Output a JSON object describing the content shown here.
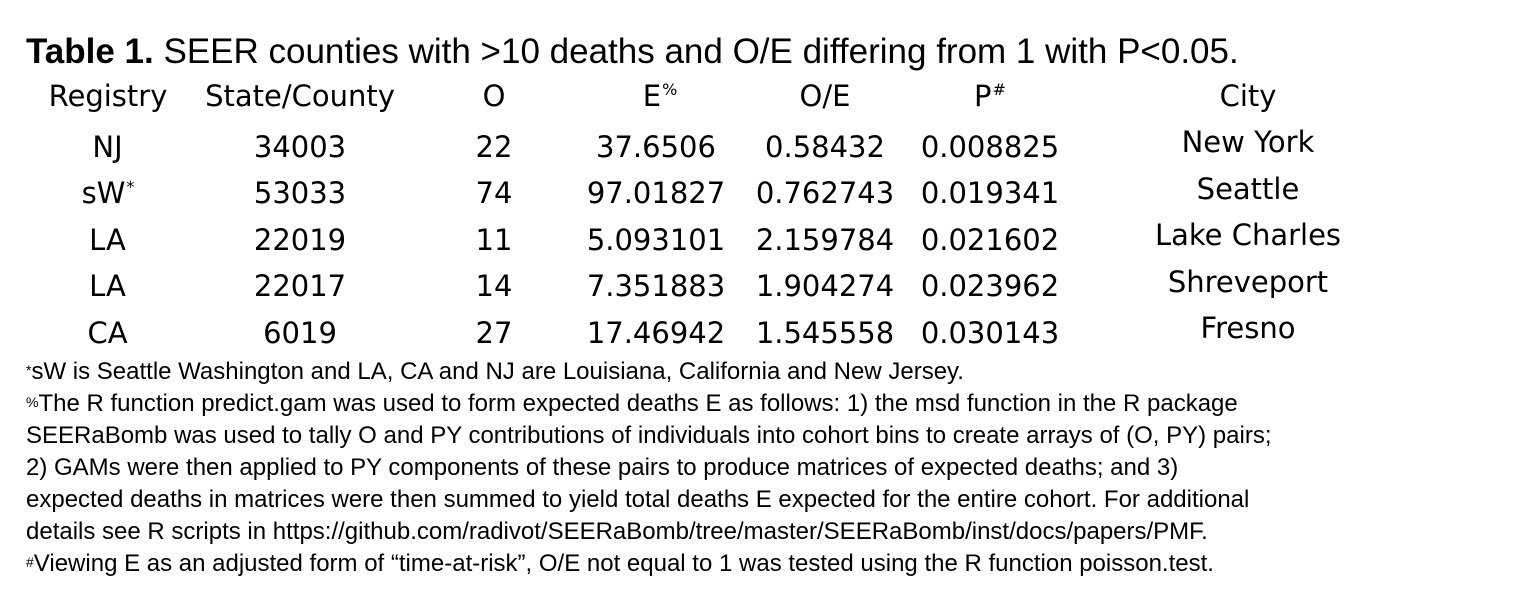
{
  "title": {
    "label": "Table 1.",
    "text": "SEER counties with >10 deaths and O/E differing from 1 with P<0.05."
  },
  "headers": {
    "registry": "Registry",
    "state_county": "State/County",
    "o": "O",
    "e": "E",
    "e_mark": "%",
    "oe": "O/E",
    "p": "P",
    "p_mark": "#",
    "city": "City"
  },
  "rows": [
    {
      "registry": "NJ",
      "registry_mark": "",
      "state_county": "34003",
      "o": "22",
      "e": "37.6506",
      "oe": "0.58432",
      "p": "0.008825",
      "city": "New York"
    },
    {
      "registry": "sW",
      "registry_mark": "*",
      "state_county": "53033",
      "o": "74",
      "e": "97.01827",
      "oe": "0.762743",
      "p": "0.019341",
      "city": "Seattle"
    },
    {
      "registry": "LA",
      "registry_mark": "",
      "state_county": "22019",
      "o": "11",
      "e": "5.093101",
      "oe": "2.159784",
      "p": "0.021602",
      "city": "Lake Charles"
    },
    {
      "registry": "LA",
      "registry_mark": "",
      "state_county": "22017",
      "o": "14",
      "e": "7.351883",
      "oe": "1.904274",
      "p": "0.023962",
      "city": "Shreveport"
    },
    {
      "registry": "CA",
      "registry_mark": "",
      "state_county": "6019",
      "o": "27",
      "e": "17.46942",
      "oe": "1.545558",
      "p": "0.030143",
      "city": "Fresno"
    }
  ],
  "footnotes": {
    "star_mark": "*",
    "star_text": "sW is Seattle Washington and LA, CA and NJ are Louisiana, California and New Jersey.",
    "pct_mark": "%",
    "pct_lines": [
      "The R function predict.gam was used to form expected deaths E as follows: 1) the msd function in the R package",
      "SEERaBomb was used to tally O and PY contributions of individuals into cohort bins to create arrays of (O, PY) pairs;",
      "2) GAMs were then applied to PY components of these pairs to produce matrices of expected deaths; and 3)",
      "expected deaths in matrices were then summed to yield total deaths E expected for the entire cohort. For additional",
      "details see R scripts in https://github.com/radivot/SEERaBomb/tree/master/SEERaBomb/inst/docs/papers/PMF."
    ],
    "hash_mark": "#",
    "hash_text": "Viewing E as an adjusted form of “time-at-risk”, O/E not equal to 1 was tested using the R function poisson.test."
  }
}
